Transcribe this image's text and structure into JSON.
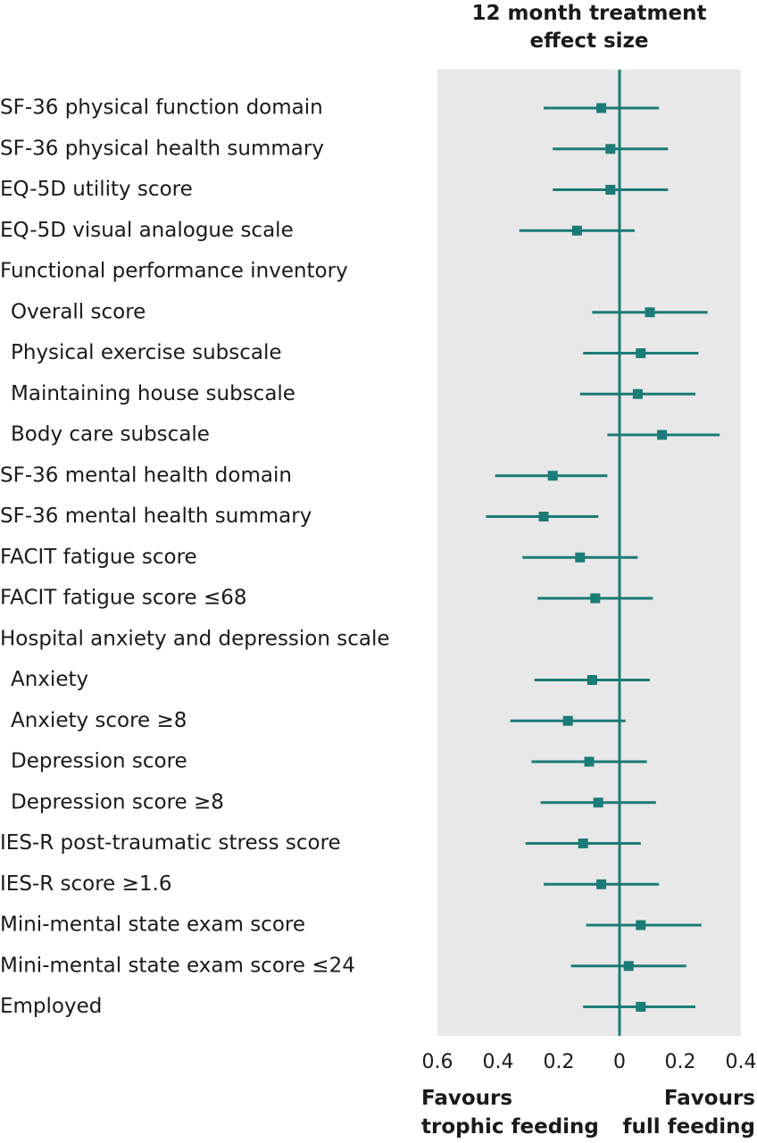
{
  "chart_data": {
    "type": "forest",
    "title": "12 month treatment\neffect size",
    "x_range": [
      -0.6,
      0.4
    ],
    "x_ticks": [
      {
        "value": -0.6,
        "label": "0.6"
      },
      {
        "value": -0.4,
        "label": "0.4"
      },
      {
        "value": -0.2,
        "label": "0.2"
      },
      {
        "value": 0,
        "label": "0"
      },
      {
        "value": 0.2,
        "label": "0.2"
      },
      {
        "value": 0.4,
        "label": "0.4"
      }
    ],
    "favours_left": "Favours\ntrophic feeding",
    "favours_right": "Favours\nfull feeding",
    "colors": {
      "marker": "#1b7b76",
      "panel": "#e8e8e8",
      "text": "#1a1a1a"
    },
    "rows": [
      {
        "label": "SF-36 physical function domain",
        "indent": false,
        "estimate": -0.06,
        "low": -0.25,
        "high": 0.13
      },
      {
        "label": "SF-36 physical health summary",
        "indent": false,
        "estimate": -0.03,
        "low": -0.22,
        "high": 0.16
      },
      {
        "label": "EQ-5D utility score",
        "indent": false,
        "estimate": -0.03,
        "low": -0.22,
        "high": 0.16
      },
      {
        "label": "EQ-5D visual analogue scale",
        "indent": false,
        "estimate": -0.14,
        "low": -0.33,
        "high": 0.05
      },
      {
        "label": "Functional performance inventory",
        "indent": false,
        "estimate": null,
        "low": null,
        "high": null
      },
      {
        "label": "Overall score",
        "indent": true,
        "estimate": 0.1,
        "low": -0.09,
        "high": 0.29
      },
      {
        "label": "Physical exercise subscale",
        "indent": true,
        "estimate": 0.07,
        "low": -0.12,
        "high": 0.26
      },
      {
        "label": "Maintaining house subscale",
        "indent": true,
        "estimate": 0.06,
        "low": -0.13,
        "high": 0.25
      },
      {
        "label": "Body care subscale",
        "indent": true,
        "estimate": 0.14,
        "low": -0.04,
        "high": 0.33
      },
      {
        "label": "SF-36 mental health domain",
        "indent": false,
        "estimate": -0.22,
        "low": -0.41,
        "high": -0.04
      },
      {
        "label": "SF-36 mental health summary",
        "indent": false,
        "estimate": -0.25,
        "low": -0.44,
        "high": -0.07
      },
      {
        "label": "FACIT fatigue score",
        "indent": false,
        "estimate": -0.13,
        "low": -0.32,
        "high": 0.06
      },
      {
        "label": "FACIT fatigue score ≤68",
        "indent": false,
        "estimate": -0.08,
        "low": -0.27,
        "high": 0.11
      },
      {
        "label": "Hospital anxiety and depression scale",
        "indent": false,
        "estimate": null,
        "low": null,
        "high": null
      },
      {
        "label": "Anxiety",
        "indent": true,
        "estimate": -0.09,
        "low": -0.28,
        "high": 0.1
      },
      {
        "label": "Anxiety score ≥8",
        "indent": true,
        "estimate": -0.17,
        "low": -0.36,
        "high": 0.02
      },
      {
        "label": "Depression score",
        "indent": true,
        "estimate": -0.1,
        "low": -0.29,
        "high": 0.09
      },
      {
        "label": "Depression score ≥8",
        "indent": true,
        "estimate": -0.07,
        "low": -0.26,
        "high": 0.12
      },
      {
        "label": "IES-R post-traumatic stress score",
        "indent": false,
        "estimate": -0.12,
        "low": -0.31,
        "high": 0.07
      },
      {
        "label": "IES-R score ≥1.6",
        "indent": false,
        "estimate": -0.06,
        "low": -0.25,
        "high": 0.13
      },
      {
        "label": "Mini-mental state exam score",
        "indent": false,
        "estimate": 0.07,
        "low": -0.11,
        "high": 0.27
      },
      {
        "label": "Mini-mental state exam score ≤24",
        "indent": false,
        "estimate": 0.03,
        "low": -0.16,
        "high": 0.22
      },
      {
        "label": "Employed",
        "indent": false,
        "estimate": 0.07,
        "low": -0.12,
        "high": 0.25
      }
    ]
  }
}
